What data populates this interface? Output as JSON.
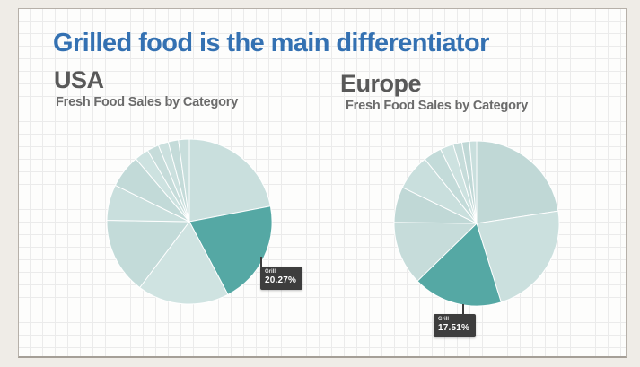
{
  "title": {
    "text": "Grilled food is the main differentiator",
    "color": "#3471b2"
  },
  "colors": {
    "accent_teal": "#55a8a4",
    "muted_teal": "#c3dad8",
    "tooltip_bg": "#3d3d3d",
    "tooltip_text": "#ffffff",
    "heading_gray": "#595959",
    "subtitle_gray": "#6b6b6b",
    "frame_bg": "#efece7",
    "panel_border": "#b6b0a9",
    "grid_line": "#ebebeb"
  },
  "charts": [
    {
      "heading": "USA",
      "subtitle": "Fresh Food Sales by Category",
      "tooltip": {
        "label": "Grill",
        "value": "20.27%"
      }
    },
    {
      "heading": "Europe",
      "subtitle": "Fresh Food Sales by Category",
      "tooltip": {
        "label": "Grill",
        "value": "17.51%"
      }
    }
  ],
  "chart_data": [
    {
      "type": "pie",
      "title": "USA - Fresh Food Sales by Category",
      "legend": "off",
      "start_angle": 0,
      "highlighted_slice": {
        "label": "Grill",
        "value": 20.27
      },
      "slices": [
        {
          "label": "",
          "value": 22.0,
          "color": "#c9dfdd"
        },
        {
          "label": "Grill",
          "value": 20.27,
          "color": "#55a8a4",
          "highlight": true
        },
        {
          "label": "",
          "value": 18.0,
          "color": "#cfe3e1"
        },
        {
          "label": "",
          "value": 15.0,
          "color": "#c3dbd9"
        },
        {
          "label": "",
          "value": 7.0,
          "color": "#c9dfdd"
        },
        {
          "label": "",
          "value": 6.5,
          "color": "#c2dad8"
        },
        {
          "label": "",
          "value": 2.8,
          "color": "#cde2e0"
        },
        {
          "label": "",
          "value": 2.3,
          "color": "#c6dcda"
        },
        {
          "label": "",
          "value": 2.0,
          "color": "#cbe0de"
        },
        {
          "label": "",
          "value": 2.0,
          "color": "#c4dbd9"
        },
        {
          "label": "",
          "value": 2.13,
          "color": "#c8dedc"
        }
      ]
    },
    {
      "type": "pie",
      "title": "Europe - Fresh Food Sales by Category",
      "legend": "off",
      "start_angle": 0,
      "highlighted_slice": {
        "label": "Grill",
        "value": 17.51
      },
      "slices": [
        {
          "label": "",
          "value": 22.6,
          "color": "#c0d8d6"
        },
        {
          "label": "",
          "value": 22.6,
          "color": "#cbe0de"
        },
        {
          "label": "Grill",
          "value": 17.51,
          "color": "#55a8a4",
          "highlight": true
        },
        {
          "label": "",
          "value": 12.5,
          "color": "#c6dcda"
        },
        {
          "label": "",
          "value": 7.0,
          "color": "#c0d8d6"
        },
        {
          "label": "",
          "value": 7.0,
          "color": "#c9dfdd"
        },
        {
          "label": "",
          "value": 3.6,
          "color": "#c3dbd9"
        },
        {
          "label": "",
          "value": 2.6,
          "color": "#cde2e0"
        },
        {
          "label": "",
          "value": 1.7,
          "color": "#c6dcda"
        },
        {
          "label": "",
          "value": 1.5,
          "color": "#c0d8d6"
        },
        {
          "label": "",
          "value": 1.39,
          "color": "#c9dfdd"
        }
      ]
    }
  ]
}
